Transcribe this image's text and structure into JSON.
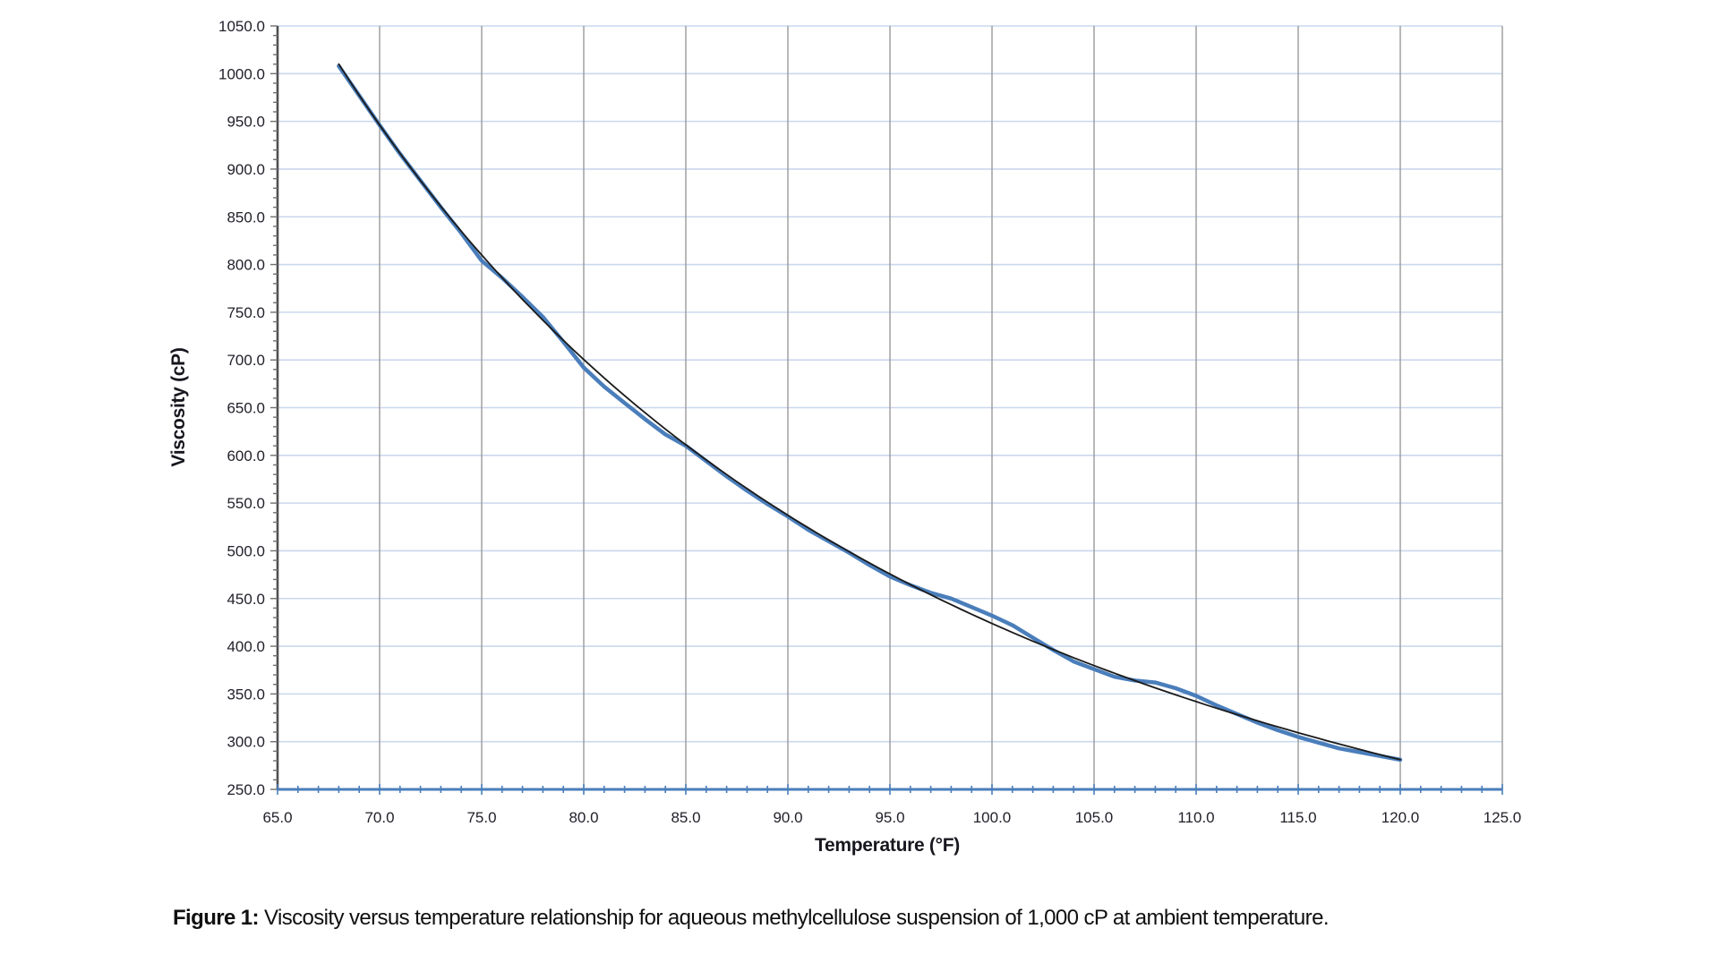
{
  "figure": {
    "caption_prefix": "Figure 1:",
    "caption_text": " Viscosity versus temperature relationship for aqueous methylcellulose suspension of 1,000 cP at ambient temperature."
  },
  "chart_data": {
    "type": "line",
    "title": "",
    "xlabel": "Temperature (°F)",
    "ylabel": "Viscosity (cP)",
    "xlim": [
      65,
      125
    ],
    "ylim": [
      250,
      1050
    ],
    "x_major_step": 5,
    "x_minor_step": 1,
    "y_major_step": 50,
    "y_minor_step": 10,
    "grid": {
      "horizontal": true,
      "vertical": true
    },
    "legend_position": "none",
    "x_tick_labels": [
      "65.0",
      "70.0",
      "75.0",
      "80.0",
      "85.0",
      "90.0",
      "95.0",
      "100.0",
      "105.0",
      "110.0",
      "115.0",
      "120.0",
      "125.0"
    ],
    "x_tick_values": [
      65,
      70,
      75,
      80,
      85,
      90,
      95,
      100,
      105,
      110,
      115,
      120,
      125
    ],
    "y_tick_labels": [
      "250.0",
      "300.0",
      "350.0",
      "400.0",
      "450.0",
      "500.0",
      "550.0",
      "600.0",
      "650.0",
      "700.0",
      "750.0",
      "800.0",
      "850.0",
      "900.0",
      "950.0",
      "1000.0",
      "1050.0"
    ],
    "y_tick_values": [
      250,
      300,
      350,
      400,
      450,
      500,
      550,
      600,
      650,
      700,
      750,
      800,
      850,
      900,
      950,
      1000,
      1050
    ],
    "colors": {
      "data_series": "#4a7ebb",
      "trendline": "#1a1a1a",
      "h_gridline": "#c9d8ed",
      "v_gridline": "#9a9a9a",
      "y_axis_line": "#4f4f4f",
      "x_axis_line": "#4a7ebb",
      "y_tick": "#6f6f6f",
      "x_tick": "#4a7ebb",
      "tick_label": "#21212b"
    },
    "series": [
      {
        "name": "viscosity-data",
        "color": "#4a7ebb",
        "stroke_width": 4.5,
        "points": [
          [
            68,
            1008
          ],
          [
            69,
            977
          ],
          [
            70,
            946
          ],
          [
            71,
            916
          ],
          [
            72,
            888
          ],
          [
            73,
            860
          ],
          [
            74,
            833
          ],
          [
            75,
            804
          ],
          [
            76,
            786
          ],
          [
            77,
            766
          ],
          [
            78,
            745
          ],
          [
            79,
            719
          ],
          [
            80,
            692
          ],
          [
            81,
            672
          ],
          [
            82,
            655
          ],
          [
            83,
            638
          ],
          [
            84,
            622
          ],
          [
            85,
            610
          ],
          [
            86,
            594
          ],
          [
            87,
            578
          ],
          [
            88,
            563
          ],
          [
            89,
            549
          ],
          [
            90,
            536
          ],
          [
            91,
            522
          ],
          [
            92,
            510
          ],
          [
            93,
            498
          ],
          [
            94,
            485
          ],
          [
            95,
            473
          ],
          [
            96,
            464
          ],
          [
            97,
            456
          ],
          [
            98,
            450
          ],
          [
            99,
            441
          ],
          [
            100,
            432
          ],
          [
            101,
            422
          ],
          [
            102,
            409
          ],
          [
            103,
            396
          ],
          [
            104,
            384
          ],
          [
            105,
            376
          ],
          [
            106,
            368
          ],
          [
            107,
            364
          ],
          [
            108,
            362
          ],
          [
            109,
            356
          ],
          [
            110,
            348
          ],
          [
            111,
            338
          ],
          [
            112,
            329
          ],
          [
            113,
            320
          ],
          [
            114,
            312
          ],
          [
            115,
            305
          ],
          [
            116,
            299
          ],
          [
            117,
            293
          ],
          [
            118,
            289
          ],
          [
            119,
            285
          ],
          [
            120,
            281
          ]
        ]
      },
      {
        "name": "power-trendline",
        "color": "#1a1a1a",
        "stroke_width": 1.8,
        "fit": {
          "type": "power",
          "a": 1010,
          "t_ref": 68,
          "b": -2.2517,
          "domain": [
            68,
            120
          ],
          "step": 0.5
        }
      }
    ]
  }
}
